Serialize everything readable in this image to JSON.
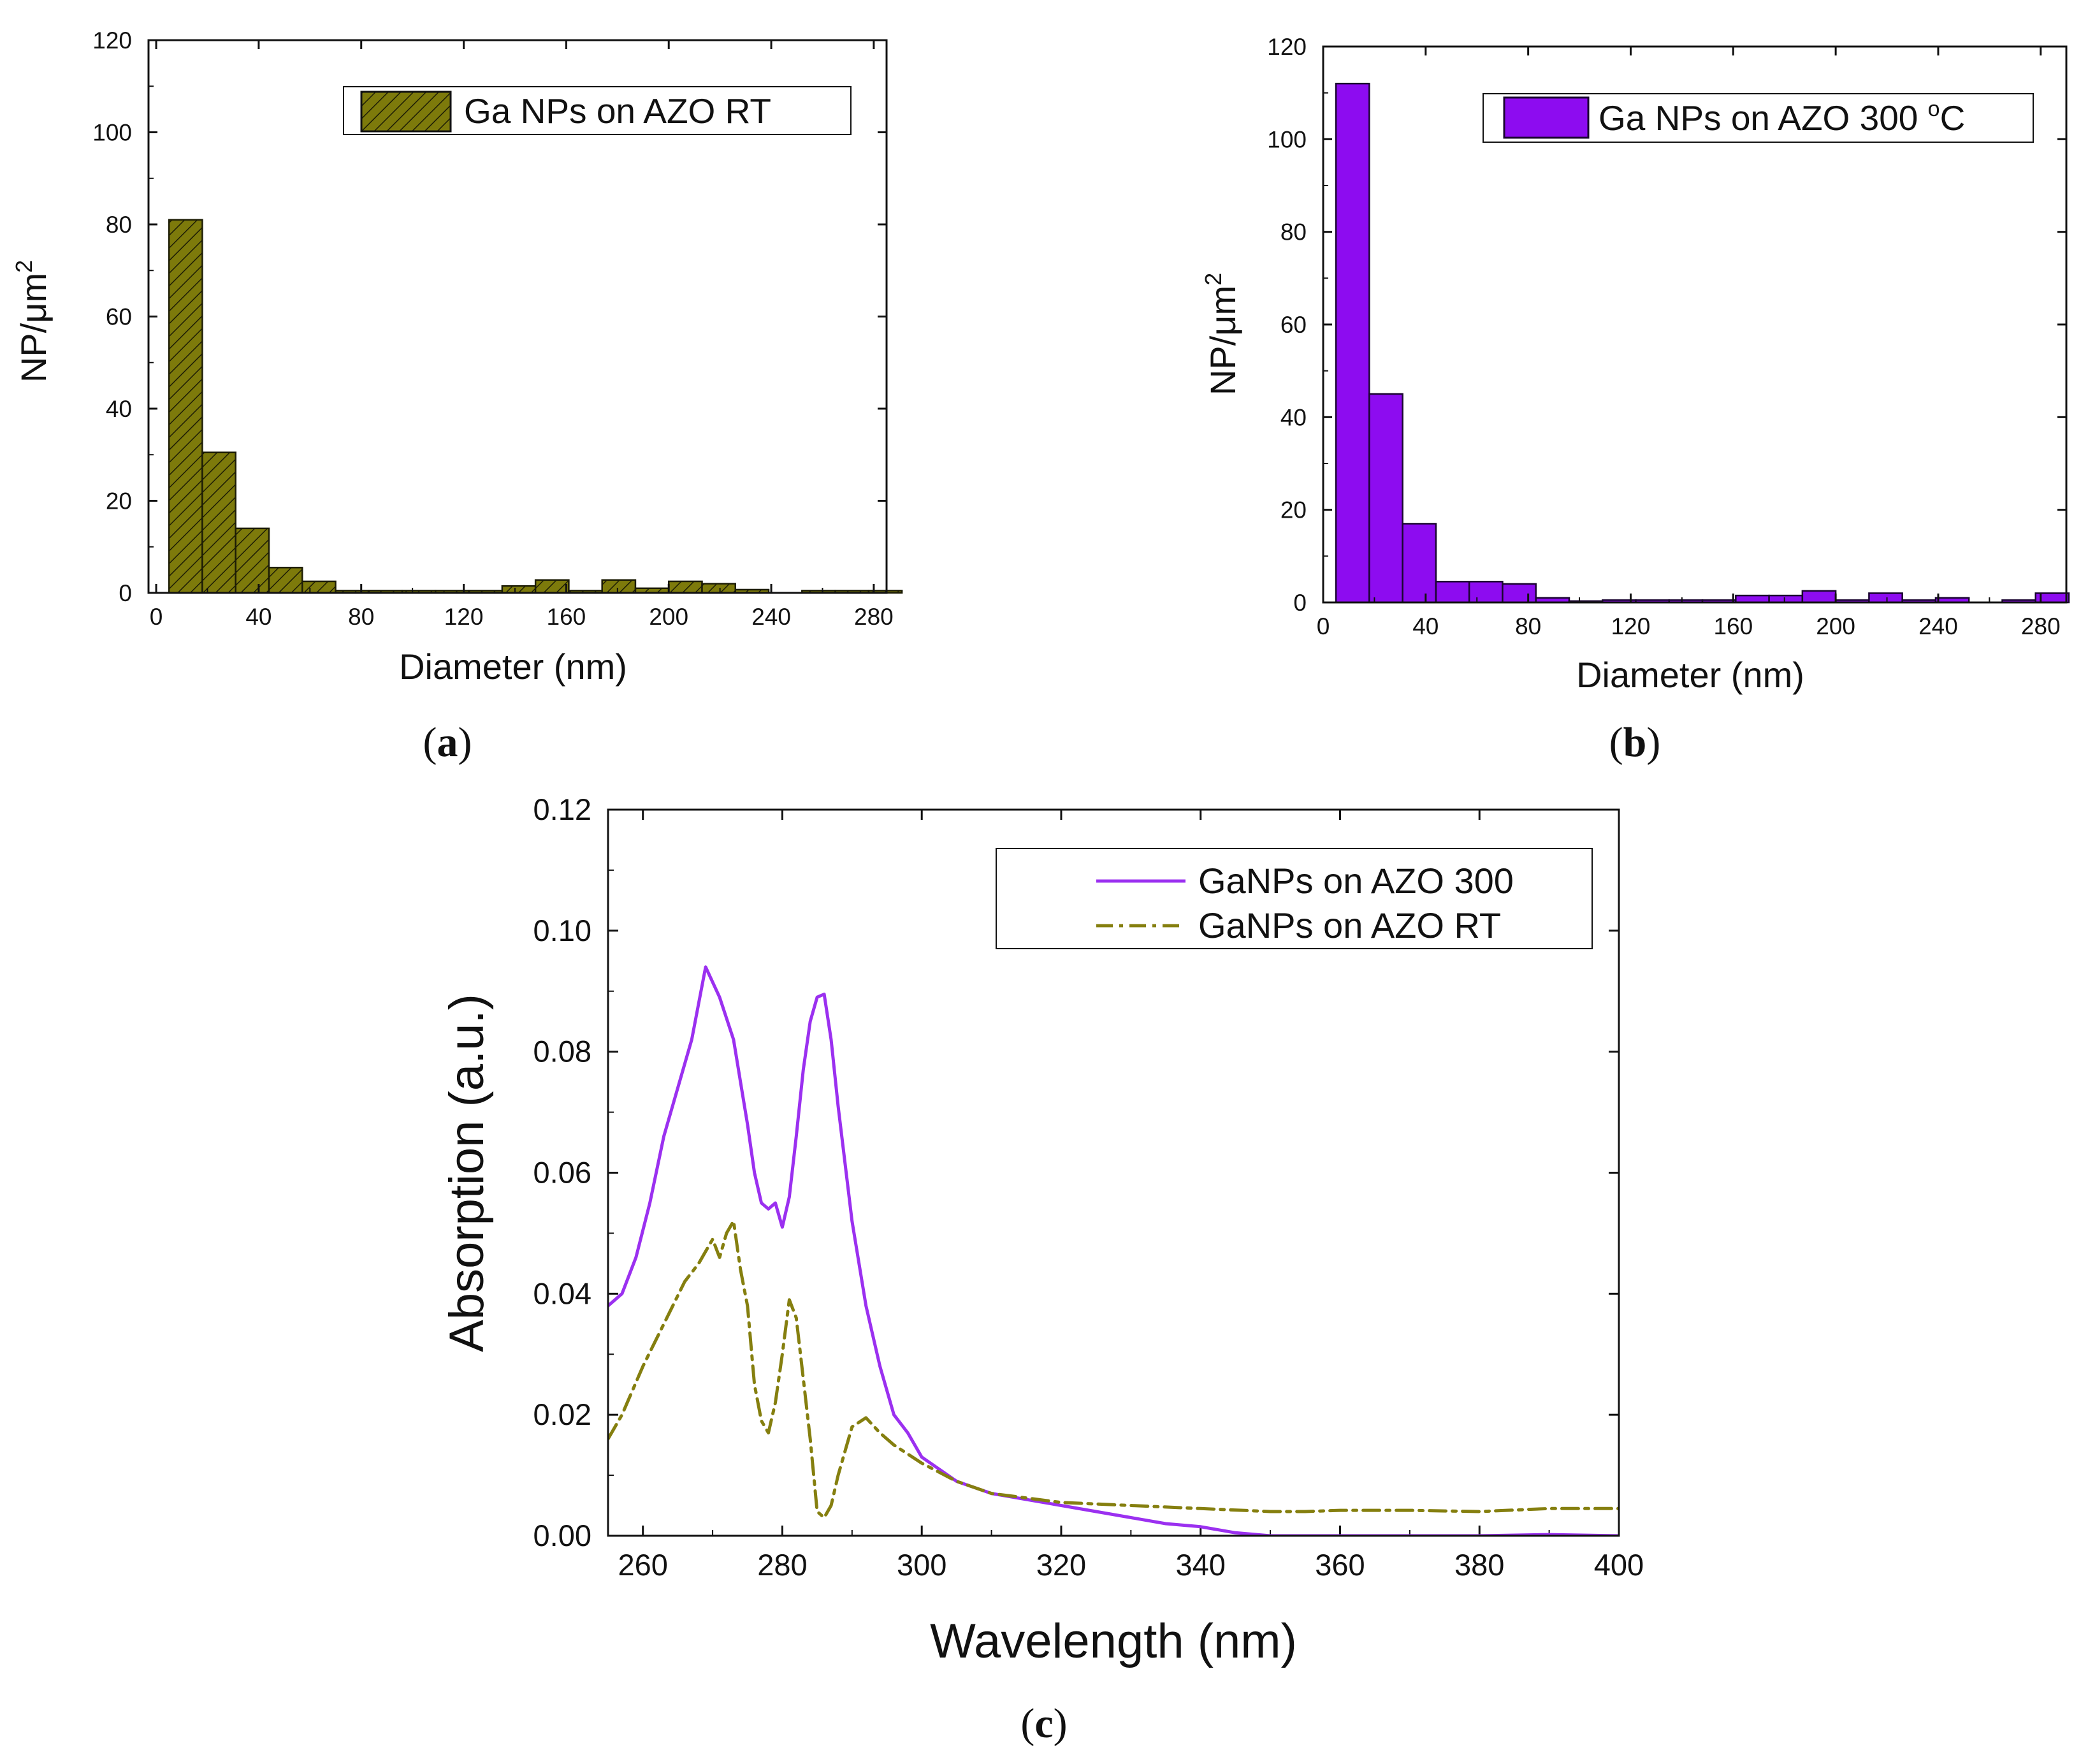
{
  "colors": {
    "olive": "#7d7a0b",
    "olive_dark": "#1c1c05",
    "violet": "#8d0cf0",
    "violet_dark": "#1a0530",
    "line_violet": "#9b30f0",
    "line_olive": "#857f0f",
    "axis": "#111111"
  },
  "panels": {
    "a": {
      "label": {
        "open": "(",
        "letter": "a",
        "close": ")"
      },
      "legend": "Ga NPs on AZO RT",
      "ylabel_main": "NP/μm",
      "ylabel_sup": "2",
      "xlabel": "Diameter (nm)"
    },
    "b": {
      "label": {
        "open": "(",
        "letter": "b",
        "close": ")"
      },
      "legend_main": "Ga NPs on AZO 300 ",
      "legend_sup": "o",
      "legend_tail": "C",
      "ylabel_main": "NP/μm",
      "ylabel_sup": "2",
      "xlabel": "Diameter (nm)"
    },
    "c": {
      "label": {
        "open": "(",
        "letter": "c",
        "close": ")"
      }
    }
  },
  "chart_data": [
    {
      "id": "a",
      "type": "bar",
      "title": "",
      "xlabel": "Diameter (nm)",
      "ylabel": "NP/μm²",
      "xlim": [
        -3,
        285
      ],
      "ylim": [
        0,
        120
      ],
      "xticks": [
        0,
        40,
        80,
        120,
        160,
        200,
        240,
        280
      ],
      "yticks": [
        0,
        20,
        40,
        60,
        80,
        100,
        120
      ],
      "bin_width": 13,
      "bin_starts": [
        5,
        18,
        31,
        44,
        57,
        70,
        83,
        96,
        109,
        122,
        135,
        148,
        161,
        174,
        187,
        200,
        213,
        226,
        239,
        252,
        265,
        278
      ],
      "values": [
        81,
        30.5,
        14,
        5.5,
        2.5,
        0.5,
        0.5,
        0.5,
        0.5,
        0.5,
        1.5,
        2.8,
        0.5,
        2.8,
        1,
        2.5,
        2,
        0.7,
        0,
        0.5,
        0.5,
        0.5
      ],
      "fill": "hatch",
      "legend": "Ga NPs on AZO RT",
      "legend_position": "top-right"
    },
    {
      "id": "b",
      "type": "bar",
      "title": "",
      "xlabel": "Diameter (nm)",
      "ylabel": "NP/μm²",
      "xlim": [
        0,
        290
      ],
      "ylim": [
        0,
        120
      ],
      "xticks": [
        0,
        40,
        80,
        120,
        160,
        200,
        240,
        280
      ],
      "yticks": [
        0,
        20,
        40,
        60,
        80,
        100,
        120
      ],
      "bin_width": 13,
      "bin_starts": [
        5,
        18,
        31,
        44,
        57,
        70,
        83,
        96,
        109,
        122,
        135,
        148,
        161,
        174,
        187,
        200,
        213,
        226,
        239,
        252,
        265,
        278
      ],
      "values": [
        112,
        45,
        17,
        4.5,
        4.5,
        4,
        1,
        0.3,
        0.5,
        0.5,
        0.5,
        0.5,
        1.5,
        1.5,
        2.5,
        0.5,
        2,
        0.5,
        1,
        0,
        0.5,
        2
      ],
      "fill": "solid",
      "legend": "Ga NPs on AZO 300 °C",
      "legend_position": "top-right"
    },
    {
      "id": "c",
      "type": "line",
      "title": "",
      "xlabel": "Wavelength (nm)",
      "ylabel": "Absorption (a.u.)",
      "xlim": [
        255,
        400
      ],
      "ylim": [
        0,
        0.12
      ],
      "xticks": [
        260,
        280,
        300,
        320,
        340,
        360,
        380,
        400
      ],
      "xtick_labels": [
        "260",
        "280",
        "300",
        "320",
        "340",
        "360",
        "380",
        "400"
      ],
      "yticks": [
        0,
        0.02,
        0.04,
        0.06,
        0.08,
        0.1,
        0.12
      ],
      "ytick_labels": [
        "0.00",
        "0.02",
        "0.04",
        "0.06",
        "0.08",
        "0.10",
        "0.12"
      ],
      "legend_position": "top-right",
      "series": [
        {
          "name": "GaNPs on AZO 300",
          "style": "solid",
          "x": [
            255,
            257,
            259,
            261,
            263,
            265,
            267,
            269,
            271,
            273,
            274,
            275,
            276,
            277,
            278,
            279,
            280,
            281,
            282,
            283,
            284,
            285,
            286,
            287,
            288,
            290,
            292,
            294,
            296,
            298,
            300,
            305,
            310,
            320,
            330,
            335,
            340,
            345,
            350,
            360,
            380,
            390,
            400
          ],
          "y": [
            0.038,
            0.04,
            0.046,
            0.055,
            0.066,
            0.074,
            0.082,
            0.094,
            0.089,
            0.082,
            0.075,
            0.068,
            0.06,
            0.055,
            0.054,
            0.055,
            0.051,
            0.056,
            0.066,
            0.077,
            0.085,
            0.089,
            0.0895,
            0.082,
            0.071,
            0.052,
            0.038,
            0.028,
            0.02,
            0.017,
            0.013,
            0.009,
            0.007,
            0.005,
            0.003,
            0.002,
            0.0015,
            0.0005,
            0.0,
            0.0,
            0.0,
            0.0002,
            0.0
          ]
        },
        {
          "name": "GaNPs on AZO RT",
          "style": "dash-dot",
          "x": [
            255,
            257,
            260,
            263,
            266,
            268,
            270,
            271,
            272,
            273,
            274,
            275,
            276,
            277,
            278,
            279,
            280,
            281,
            282,
            283,
            284,
            285,
            286,
            287,
            288,
            289,
            290,
            292,
            294,
            296,
            300,
            305,
            310,
            320,
            330,
            340,
            350,
            355,
            360,
            370,
            380,
            390,
            400
          ],
          "y": [
            0.016,
            0.02,
            0.028,
            0.035,
            0.042,
            0.045,
            0.049,
            0.046,
            0.05,
            0.052,
            0.044,
            0.038,
            0.025,
            0.019,
            0.017,
            0.022,
            0.03,
            0.039,
            0.036,
            0.026,
            0.016,
            0.004,
            0.003,
            0.005,
            0.01,
            0.014,
            0.018,
            0.0195,
            0.017,
            0.015,
            0.012,
            0.009,
            0.007,
            0.0055,
            0.005,
            0.0045,
            0.004,
            0.004,
            0.0042,
            0.0042,
            0.004,
            0.0045,
            0.0045
          ]
        }
      ]
    }
  ]
}
